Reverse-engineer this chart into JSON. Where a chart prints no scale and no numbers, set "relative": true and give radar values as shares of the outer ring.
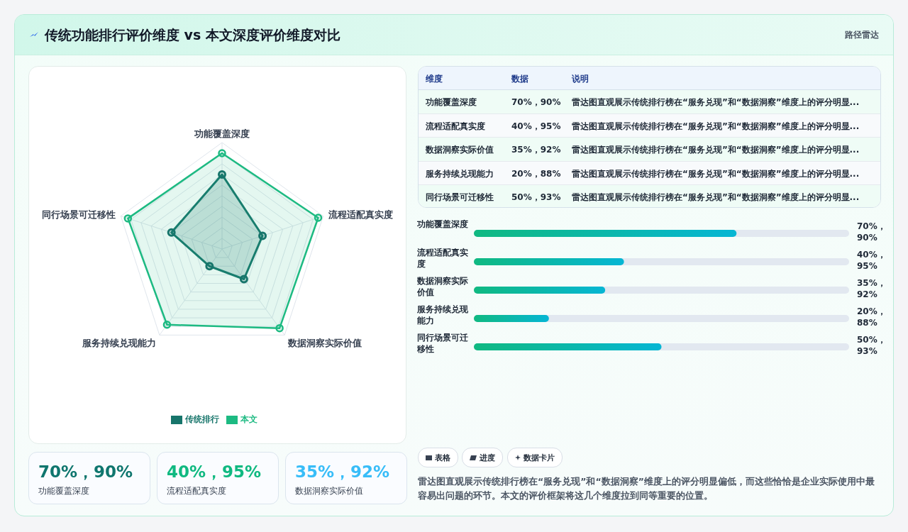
{
  "chart_data": [
    {
      "type": "radar",
      "title": "传统功能排行评价维度 vs 本文深度评价维度对比",
      "categories": [
        "功能覆盖深度",
        "流程适配真实度",
        "数据洞察实际价值",
        "服务持续兑现能力",
        "同行场景可迁移性"
      ],
      "series": [
        {
          "name": "传统排行",
          "color": "#17756b",
          "values": [
            0.7,
            0.4,
            0.35,
            0.2,
            0.5
          ]
        },
        {
          "name": "本文",
          "color": "#1dba82",
          "values": [
            0.9,
            0.95,
            0.92,
            0.88,
            0.93
          ]
        }
      ],
      "relative": true,
      "grid": true,
      "legend": "bottom",
      "marker": "circle",
      "annotations": [
        "路径雷达",
        "维度",
        "数据",
        "说明",
        "雷达图直观展示传统排行榜在“服务兑现”和“数据洞察”维度上的评分明显...",
        "表格",
        "进度",
        "数据卡片",
        "雷达图直观展示传统排行榜在“服务兑现”和“数据洞察”维度上的评分明显偏低，而这些恰恰是企业实际使用中最容易出问题的环节。本文的评价框架将这几个维度拉到同等重要的位置。",
        "70%，90%",
        "40%，95%",
        "35%，92%",
        "20%，88%",
        "50%，93%"
      ]
    },
    {
      "type": "bar",
      "orientation": "horizontal",
      "categories": [
        "功能覆盖深度",
        "流程适配真实度",
        "数据洞察实际价值",
        "服务持续兑现能力",
        "同行场景可迁移性"
      ],
      "values": [
        70,
        40,
        35,
        20,
        50
      ],
      "color": "#10b981",
      "value_labels": [
        "70%，90%",
        "40%，95%",
        "35%，92%",
        "20%，88%",
        "50%，93%"
      ],
      "xlim": [
        0,
        100
      ],
      "tick_labels": "y"
    }
  ]
}
